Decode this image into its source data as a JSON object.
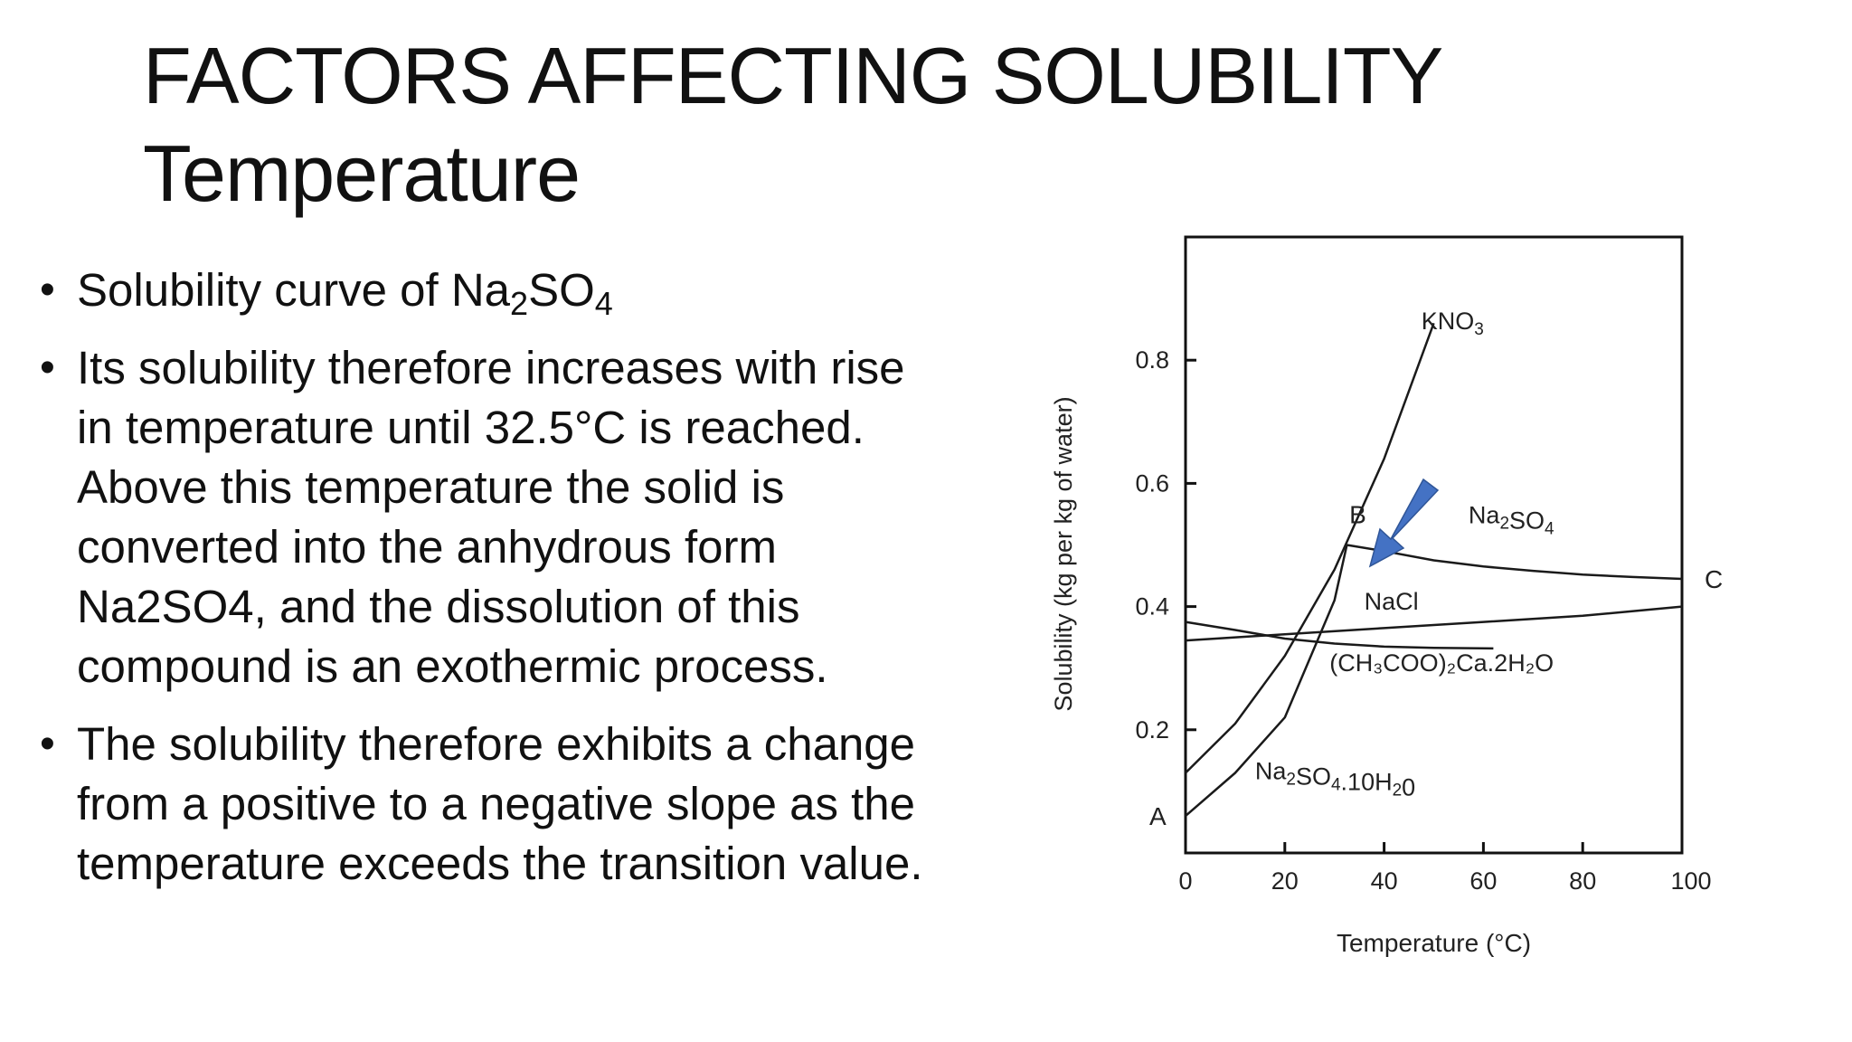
{
  "title": {
    "line1": "FACTORS AFFECTING SOLUBILITY",
    "line2": "Temperature"
  },
  "bullets": {
    "b1_text": "Solubility curve of Na",
    "b1_sub1": "2",
    "b1_mid": "SO",
    "b1_sub2": "4",
    "b2": "Its solubility therefore increases with rise in temperature until 32.5°C is reached. Above this temperature the solid is converted into the anhydrous form Na2SO4, and the dissolution of this compound is an exothermic process.",
    "b3": "The solubility therefore exhibits a change from a positive to a negative slope as the temperature exceeds the transition value."
  },
  "colors": {
    "arrow": "#4472c4",
    "curve": "#1a1a1a"
  },
  "chart_data": {
    "type": "line",
    "xlabel": "Temperature (°C)",
    "ylabel": "Solubility (kg per kg of water)",
    "xlim": [
      0,
      100
    ],
    "ylim": [
      0,
      1.0
    ],
    "xticks": [
      0,
      20,
      40,
      60,
      80,
      100
    ],
    "yticks": [
      0.2,
      0.4,
      0.6,
      0.8
    ],
    "series": [
      {
        "name": "KNO3",
        "label_main": "KNO",
        "label_sub": "3",
        "x": [
          0,
          10,
          20,
          30,
          40,
          50
        ],
        "y": [
          0.13,
          0.21,
          0.32,
          0.46,
          0.64,
          0.86
        ]
      },
      {
        "name": "Na2SO4.10H2O",
        "label_main": "Na",
        "label_sub": "2",
        "label_rest": "SO",
        "label_sub2": "4",
        "label_tail": ".10H",
        "label_sub3": "2",
        "label_end": "0",
        "x": [
          0,
          10,
          20,
          30,
          32.5
        ],
        "y": [
          0.06,
          0.13,
          0.22,
          0.41,
          0.5
        ]
      },
      {
        "name": "Na2SO4",
        "label_main": "Na",
        "label_sub": "2",
        "label_rest": "SO",
        "label_sub2": "4",
        "x": [
          32.5,
          40,
          50,
          60,
          70,
          80,
          90,
          100
        ],
        "y": [
          0.5,
          0.49,
          0.475,
          0.465,
          0.458,
          0.452,
          0.448,
          0.445
        ]
      },
      {
        "name": "NaCl",
        "label_main": "NaCl",
        "x": [
          0,
          20,
          40,
          60,
          80,
          100
        ],
        "y": [
          0.345,
          0.355,
          0.365,
          0.375,
          0.385,
          0.4
        ]
      },
      {
        "name": "(CH3COO)2Ca.2H2O",
        "label_text": "(CH₃COO)₂Ca.2H₂O",
        "x": [
          0,
          10,
          20,
          30,
          40,
          50,
          62
        ],
        "y": [
          0.375,
          0.362,
          0.348,
          0.34,
          0.335,
          0.333,
          0.332
        ]
      }
    ],
    "points": [
      {
        "label": "A",
        "x": 0,
        "y": 0.06
      },
      {
        "label": "B",
        "x": 32.5,
        "y": 0.5
      },
      {
        "label": "C",
        "x": 100,
        "y": 0.445
      }
    ]
  }
}
